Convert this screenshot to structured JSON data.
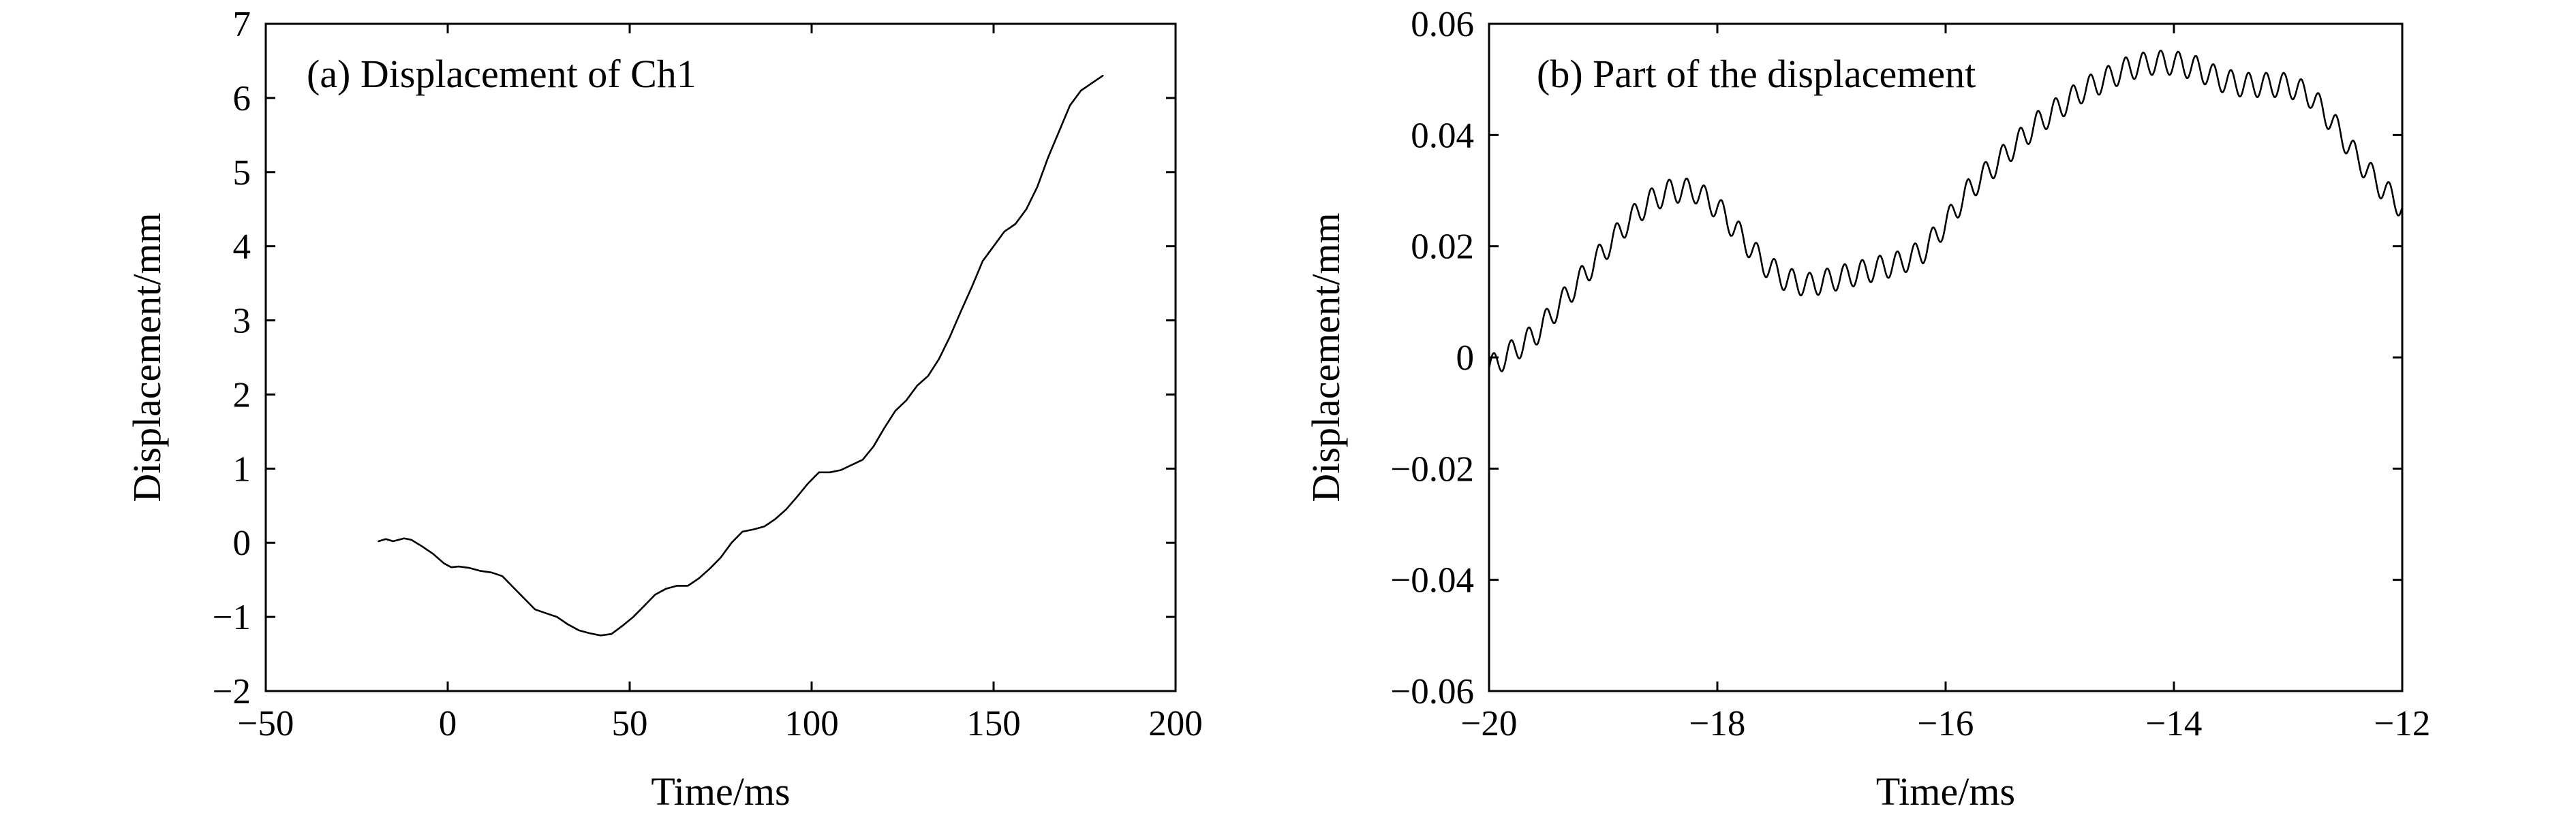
{
  "chart_data": [
    {
      "type": "line",
      "title": "(a) Displacement of Ch1",
      "xlabel": "Time/ms",
      "ylabel": "Displacement/mm",
      "xlim": [
        -50,
        200
      ],
      "ylim": [
        -2,
        7
      ],
      "xticks": [
        -50,
        0,
        50,
        100,
        150,
        200
      ],
      "xtick_labels": [
        "−50",
        "0",
        "50",
        "100",
        "150",
        "200"
      ],
      "yticks": [
        -2,
        -1,
        0,
        1,
        2,
        3,
        4,
        5,
        6,
        7
      ],
      "ytick_labels": [
        "−2",
        "−1",
        "0",
        "1",
        "2",
        "3",
        "4",
        "5",
        "6",
        "7"
      ],
      "grid": false,
      "series": [
        {
          "x": [
            -19,
            -17,
            -15,
            -12,
            -10,
            -7,
            -4,
            -1,
            1,
            3,
            6,
            9,
            12,
            15,
            18,
            21,
            24,
            27,
            30,
            33,
            36,
            39,
            42,
            45,
            48,
            51,
            54,
            57,
            60,
            63,
            66,
            69,
            72,
            75,
            78,
            81,
            84,
            87,
            90,
            93,
            96,
            99,
            102,
            105,
            108,
            111,
            114,
            117,
            120,
            123,
            126,
            129,
            132,
            135,
            138,
            141,
            144,
            147,
            150,
            153,
            156,
            159,
            162,
            165,
            168,
            171,
            174,
            177,
            180
          ],
          "y": [
            0.02,
            0.05,
            0.02,
            0.06,
            0.04,
            -0.05,
            -0.15,
            -0.28,
            -0.33,
            -0.32,
            -0.34,
            -0.38,
            -0.4,
            -0.45,
            -0.6,
            -0.75,
            -0.9,
            -0.95,
            -1.0,
            -1.1,
            -1.18,
            -1.22,
            -1.25,
            -1.23,
            -1.12,
            -1.0,
            -0.85,
            -0.7,
            -0.62,
            -0.58,
            -0.58,
            -0.48,
            -0.35,
            -0.2,
            0.0,
            0.15,
            0.18,
            0.22,
            0.32,
            0.45,
            0.62,
            0.8,
            0.95,
            0.95,
            0.98,
            1.05,
            1.12,
            1.3,
            1.55,
            1.78,
            1.92,
            2.12,
            2.25,
            2.48,
            2.78,
            3.12,
            3.45,
            3.8,
            4.0,
            4.2,
            4.3,
            4.5,
            4.8,
            5.2,
            5.55,
            5.9,
            6.1,
            6.2,
            6.3
          ]
        }
      ]
    },
    {
      "type": "line",
      "title": "(b) Part of the displacement",
      "xlabel": "Time/ms",
      "ylabel": "Displacement/mm",
      "xlim": [
        -20,
        -12
      ],
      "ylim": [
        -0.06,
        0.06
      ],
      "xticks": [
        -20,
        -18,
        -16,
        -14,
        -12
      ],
      "xtick_labels": [
        "−20",
        "−18",
        "−16",
        "−14",
        "−12"
      ],
      "yticks": [
        -0.06,
        -0.04,
        -0.02,
        0,
        0.02,
        0.04,
        0.06
      ],
      "ytick_labels": [
        "−0.06",
        "−0.04",
        "−0.02",
        "0",
        "0.02",
        "0.04",
        "0.06"
      ],
      "grid": false,
      "series": [
        {
          "x": [
            -20.0,
            -19.8,
            -19.6,
            -19.4,
            -19.2,
            -19.0,
            -18.8,
            -18.6,
            -18.4,
            -18.2,
            -18.0,
            -17.8,
            -17.6,
            -17.4,
            -17.2,
            -17.0,
            -16.8,
            -16.6,
            -16.4,
            -16.2,
            -16.0,
            -15.8,
            -15.6,
            -15.4,
            -15.2,
            -15.0,
            -14.8,
            -14.6,
            -14.4,
            -14.2,
            -14.0,
            -13.8,
            -13.6,
            -13.4,
            -13.2,
            -13.0,
            -12.8,
            -12.6,
            -12.4,
            -12.2,
            -12.0
          ],
          "y": [
            -0.002,
            0.001,
            0.004,
            0.009,
            0.014,
            0.019,
            0.024,
            0.028,
            0.03,
            0.03,
            0.027,
            0.022,
            0.017,
            0.014,
            0.013,
            0.014,
            0.015,
            0.016,
            0.017,
            0.019,
            0.024,
            0.03,
            0.034,
            0.038,
            0.042,
            0.045,
            0.048,
            0.05,
            0.052,
            0.053,
            0.053,
            0.052,
            0.05,
            0.049,
            0.049,
            0.049,
            0.047,
            0.042,
            0.036,
            0.031,
            0.027
          ],
          "ripple_amplitude": 0.0022,
          "ripple_count": 52
        }
      ]
    }
  ]
}
